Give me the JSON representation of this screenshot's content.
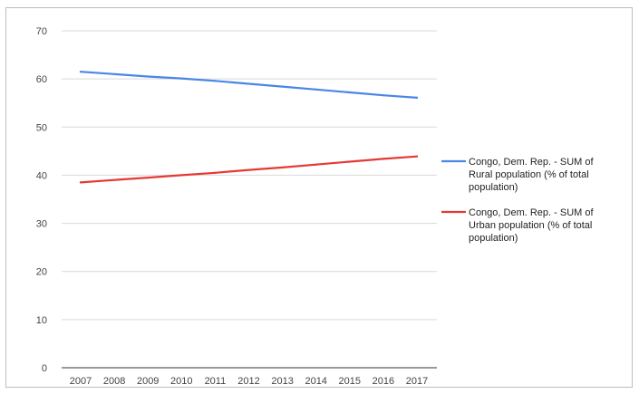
{
  "chart_data": {
    "type": "line",
    "title": "",
    "xlabel": "",
    "ylabel": "",
    "categories": [
      "2007",
      "2008",
      "2009",
      "2010",
      "2011",
      "2012",
      "2013",
      "2014",
      "2015",
      "2016",
      "2017"
    ],
    "ylim": [
      0,
      70
    ],
    "yticks": [
      "0",
      "10",
      "20",
      "30",
      "40",
      "50",
      "60",
      "70"
    ],
    "grid": true,
    "legend_position": "right",
    "series": [
      {
        "name": "Congo, Dem. Rep. - SUM of Rural population (% of total population)",
        "legend_lines": [
          "Congo, Dem. Rep. - SUM of",
          "Rural population (% of total",
          "population)"
        ],
        "color": "#4a86e8",
        "values": [
          61.5,
          61.0,
          60.5,
          60.1,
          59.6,
          59.0,
          58.4,
          57.8,
          57.2,
          56.6,
          56.1
        ]
      },
      {
        "name": "Congo, Dem. Rep. - SUM of Urban population (% of total population)",
        "legend_lines": [
          "Congo, Dem. Rep. - SUM of",
          "Urban population (% of total",
          "population)"
        ],
        "color": "#e53935",
        "values": [
          38.5,
          39.0,
          39.5,
          40.0,
          40.5,
          41.1,
          41.6,
          42.2,
          42.8,
          43.4,
          43.9
        ]
      }
    ]
  }
}
